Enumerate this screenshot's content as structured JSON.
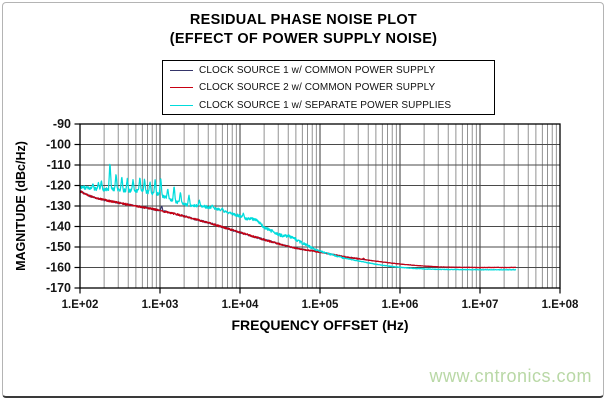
{
  "watermark": {
    "text": "www.cntronics.com",
    "color": "#b9d8a6"
  },
  "chart_data": {
    "type": "line",
    "title": "RESIDUAL PHASE NOISE PLOT",
    "subtitle": "(EFFECT OF POWER SUPPLY NOISE)",
    "xlabel": "FREQUENCY OFFSET (Hz)",
    "ylabel": "MAGNITUDE (dBc/Hz)",
    "x_scale": "log",
    "xlim": [
      100,
      100000000
    ],
    "ylim": [
      -170,
      -90
    ],
    "grid": {
      "horizontal_major": true,
      "vertical_major": true,
      "vertical_minor_log": true
    },
    "x_end_log": 7.45,
    "x_ticks": [
      {
        "label": "1.E+02",
        "value": 100
      },
      {
        "label": "1.E+03",
        "value": 1000
      },
      {
        "label": "1.E+04",
        "value": 10000
      },
      {
        "label": "1.E+05",
        "value": 100000
      },
      {
        "label": "1.E+06",
        "value": 1000000
      },
      {
        "label": "1.E+07",
        "value": 10000000
      },
      {
        "label": "1.E+08",
        "value": 100000000
      }
    ],
    "y_ticks": [
      {
        "label": "-90",
        "value": -90
      },
      {
        "label": "-100",
        "value": -100
      },
      {
        "label": "-110",
        "value": -110
      },
      {
        "label": "-120",
        "value": -120
      },
      {
        "label": "-130",
        "value": -130
      },
      {
        "label": "-140",
        "value": -140
      },
      {
        "label": "-150",
        "value": -150
      },
      {
        "label": "-160",
        "value": -160
      },
      {
        "label": "-170",
        "value": -170
      }
    ],
    "legend": {
      "position": "top-center"
    },
    "curves": {
      "common_supply": [
        [
          100,
          -122.8
        ],
        [
          130,
          -125
        ],
        [
          160,
          -126.2
        ],
        [
          200,
          -127
        ],
        [
          250,
          -127.8
        ],
        [
          320,
          -128.6
        ],
        [
          400,
          -129.3
        ],
        [
          500,
          -130
        ],
        [
          630,
          -130.7
        ],
        [
          800,
          -131.4
        ],
        [
          1000,
          -132.2
        ],
        [
          1300,
          -133.2
        ],
        [
          1600,
          -134
        ],
        [
          2000,
          -135
        ],
        [
          2500,
          -136
        ],
        [
          3200,
          -137.1
        ],
        [
          4000,
          -138.2
        ],
        [
          5000,
          -139.3
        ],
        [
          6300,
          -140.5
        ],
        [
          8000,
          -141.7
        ],
        [
          10000,
          -142.9
        ],
        [
          13000,
          -144.2
        ],
        [
          16000,
          -145.3
        ],
        [
          20000,
          -146.4
        ],
        [
          25000,
          -147.5
        ],
        [
          32000,
          -148.7
        ],
        [
          40000,
          -149.7
        ],
        [
          50000,
          -150.6
        ],
        [
          63000,
          -151.3
        ],
        [
          80000,
          -151.9
        ],
        [
          100000,
          -152.5
        ],
        [
          130000,
          -153.3
        ],
        [
          160000,
          -154
        ],
        [
          200000,
          -154.7
        ],
        [
          250000,
          -155.3
        ],
        [
          320000,
          -155.9
        ],
        [
          400000,
          -156.4
        ],
        [
          500000,
          -156.9
        ],
        [
          630000,
          -157.4
        ],
        [
          800000,
          -157.9
        ],
        [
          1000000,
          -158.3
        ],
        [
          1300000,
          -158.7
        ],
        [
          1600000,
          -159
        ],
        [
          2000000,
          -159.3
        ],
        [
          2500000,
          -159.5
        ],
        [
          3200000,
          -159.7
        ],
        [
          4000000,
          -159.8
        ],
        [
          5000000,
          -159.9
        ],
        [
          10000000,
          -160
        ],
        [
          30000000,
          -160
        ]
      ],
      "separate_supply": [
        [
          100,
          -120.5
        ],
        [
          130,
          -121.5
        ],
        [
          180,
          -122
        ],
        [
          240,
          -121.8
        ],
        [
          300,
          -122.3
        ],
        [
          400,
          -122.5
        ],
        [
          550,
          -122.8
        ],
        [
          700,
          -123.2
        ],
        [
          900,
          -124
        ],
        [
          1000,
          -124.5
        ],
        [
          1200,
          -126
        ],
        [
          1600,
          -128
        ],
        [
          2200,
          -129.5
        ],
        [
          3000,
          -130
        ],
        [
          4000,
          -130.5
        ],
        [
          5000,
          -131.2
        ],
        [
          6300,
          -132.5
        ],
        [
          8000,
          -133.8
        ],
        [
          10000,
          -135
        ],
        [
          12000,
          -136.2
        ],
        [
          14000,
          -136.3
        ],
        [
          16000,
          -136.8
        ],
        [
          18000,
          -138.5
        ],
        [
          20000,
          -140.5
        ],
        [
          25000,
          -142.3
        ],
        [
          30000,
          -143.8
        ],
        [
          35000,
          -144.8
        ],
        [
          40000,
          -144.6
        ],
        [
          45000,
          -145.2
        ],
        [
          50000,
          -146.3
        ],
        [
          60000,
          -148
        ],
        [
          70000,
          -149.3
        ],
        [
          85000,
          -151
        ],
        [
          100000,
          -152
        ],
        [
          130000,
          -153.4
        ],
        [
          160000,
          -154.4
        ],
        [
          200000,
          -155.4
        ],
        [
          250000,
          -156.2
        ],
        [
          320000,
          -157
        ],
        [
          400000,
          -157.7
        ],
        [
          500000,
          -158.4
        ],
        [
          630000,
          -159
        ],
        [
          800000,
          -159.5
        ],
        [
          1000000,
          -159.9
        ],
        [
          1300000,
          -160.3
        ],
        [
          1600000,
          -160.5
        ],
        [
          2000000,
          -160.7
        ],
        [
          3000000,
          -160.9
        ],
        [
          5000000,
          -161
        ],
        [
          10000000,
          -161.1
        ],
        [
          30000000,
          -161.1
        ]
      ]
    },
    "series": [
      {
        "name": "CLOCK SOURCE 1 w/ COMMON POWER SUPPLY",
        "color": "#35356a",
        "curve": "common_supply",
        "spikes": [
          [
            1050,
            -129.8
          ]
        ],
        "noise": [
          [
            2,
            0.45
          ],
          [
            4.5,
            0.3
          ],
          [
            5.5,
            0.1
          ]
        ],
        "seed": 7
      },
      {
        "name": "CLOCK SOURCE 2 w/ COMMON POWER SUPPLY",
        "color": "#c80012",
        "curve": "common_supply",
        "spikes": [
          [
            350000,
            -155.4
          ]
        ],
        "noise": [
          [
            2,
            0.45
          ],
          [
            4.5,
            0.3
          ],
          [
            5.5,
            0.1
          ]
        ],
        "seed": 13
      },
      {
        "name": "CLOCK SOURCE 1 w/ SEPARATE POWER SUPPLIES",
        "color": "#00dcdc",
        "curve": "separate_supply",
        "spikes": [
          [
            145,
            -119
          ],
          [
            170,
            -118.5
          ],
          [
            185,
            -117.5
          ],
          [
            237,
            -108.5
          ],
          [
            282,
            -114
          ],
          [
            333,
            -115.5
          ],
          [
            390,
            -116.5
          ],
          [
            460,
            -117
          ],
          [
            560,
            -115.7
          ],
          [
            640,
            -116.5
          ],
          [
            750,
            -118
          ],
          [
            870,
            -117
          ],
          [
            1020,
            -116
          ],
          [
            1250,
            -121.5
          ],
          [
            1500,
            -120
          ],
          [
            1800,
            -123
          ],
          [
            2300,
            -124.5
          ],
          [
            3100,
            -127
          ],
          [
            4500,
            -129.5
          ],
          [
            6000,
            -131
          ],
          [
            11000,
            -133.5
          ]
        ],
        "noise": [
          [
            2,
            0.85
          ],
          [
            3,
            0.7
          ],
          [
            4.9,
            0.35
          ],
          [
            5.3,
            0.12
          ]
        ],
        "seed": 3
      }
    ]
  }
}
